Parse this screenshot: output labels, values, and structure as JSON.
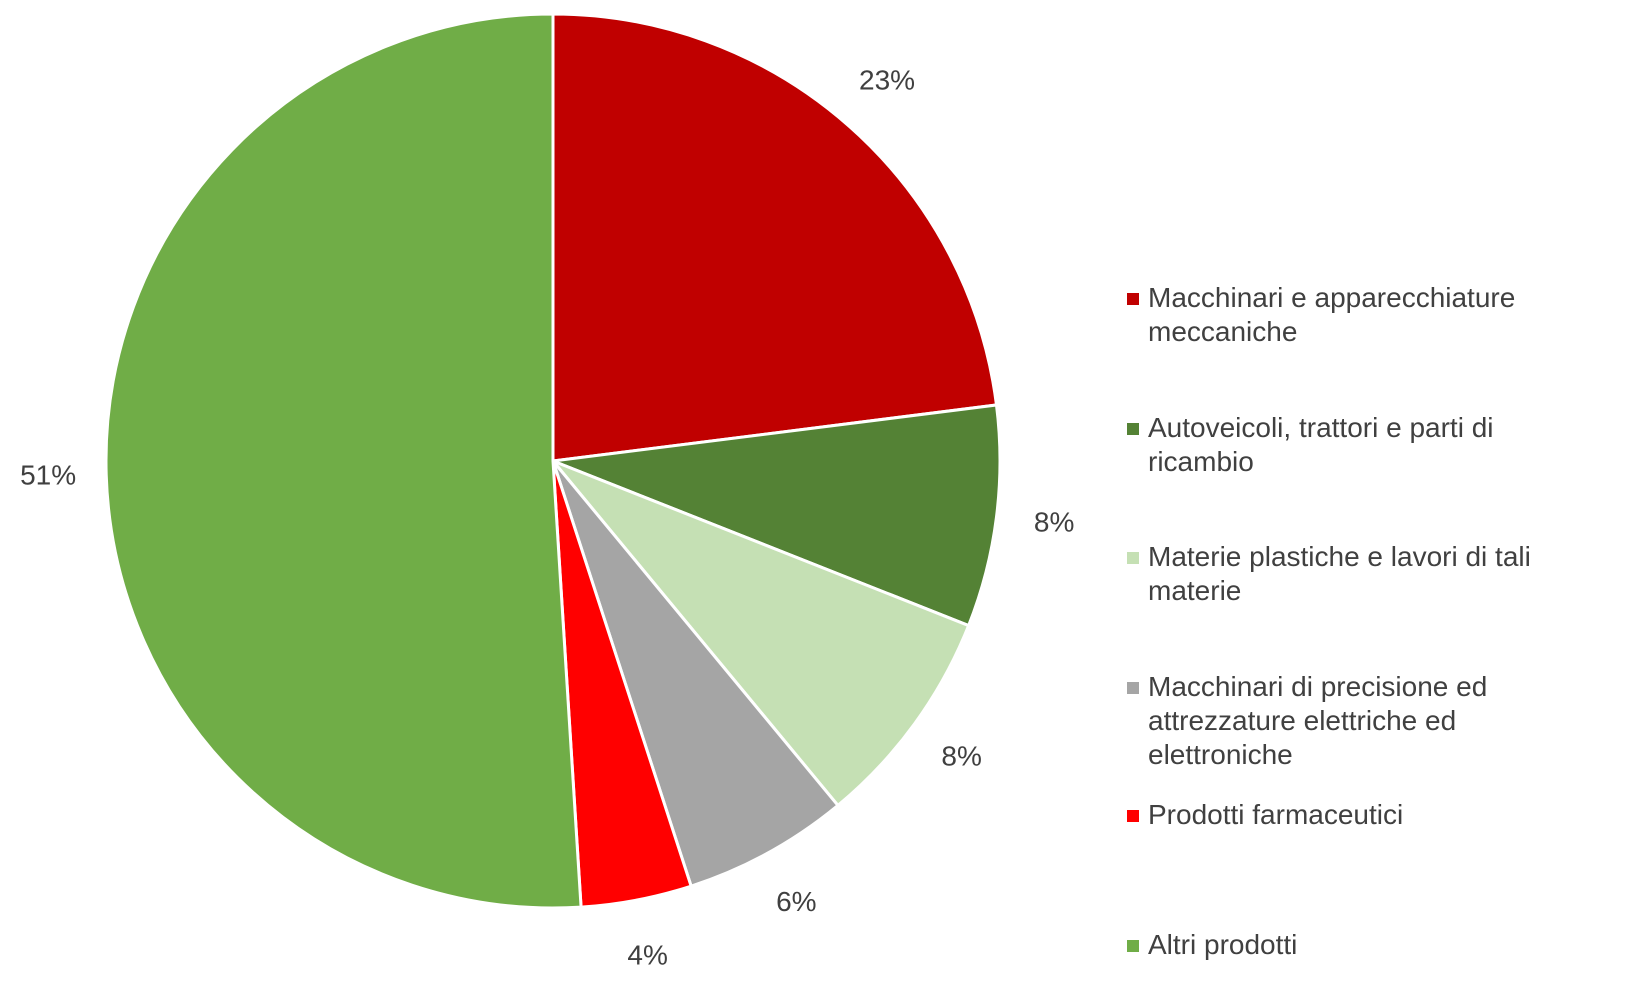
{
  "chart_data": {
    "type": "pie",
    "categories": [
      "Macchinari e apparecchiature meccaniche",
      "Autoveicoli, trattori e parti di ricambio",
      "Materie plastiche e lavori di tali materie",
      "Macchinari di precisione ed attrezzature elettriche ed elettroniche",
      "Prodotti farmaceutici",
      "Altri prodotti"
    ],
    "values": [
      23,
      8,
      8,
      6,
      4,
      51
    ],
    "value_labels": [
      "23%",
      "8%",
      "8%",
      "6%",
      "4%",
      "51%"
    ],
    "colors": [
      "#c00000",
      "#548235",
      "#c5e0b4",
      "#a5a5a5",
      "#ff0000",
      "#70ad47"
    ],
    "legend": "right"
  }
}
